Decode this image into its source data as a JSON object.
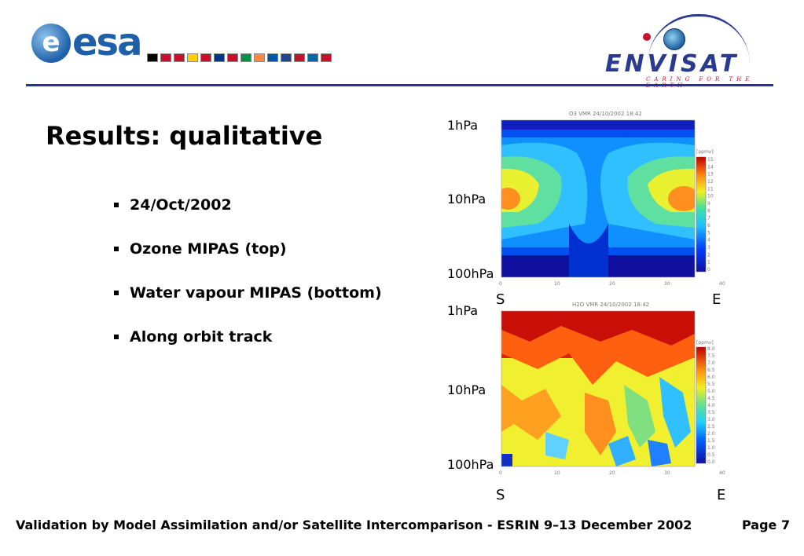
{
  "header": {
    "esa_logo_text": "esa",
    "esa_logo_initial": "e",
    "envisat_logo_text": "ENVISAT",
    "envisat_tagline": "CARING FOR THE EARTH",
    "flag_colors": [
      "#000000",
      "#c8102e",
      "#c8102e",
      "#ffd100",
      "#c8102e",
      "#003580",
      "#c8102e",
      "#009246",
      "#ff883e",
      "#0055a4",
      "#21468b",
      "#c8102e",
      "#006aa7",
      "#c8102e"
    ]
  },
  "slide": {
    "title": "Results: qualitative",
    "bullets": [
      "24/Oct/2002",
      "Ozone MIPAS (top)",
      "Water vapour MIPAS (bottom)",
      "Along orbit track"
    ]
  },
  "plots": {
    "top": {
      "caption": "O3 VMR 24/10/2002 18:42",
      "unit": "[ppmv]",
      "colorbar_ticks": [
        "15",
        "14",
        "13",
        "12",
        "11",
        "10",
        "9",
        "8",
        "7",
        "6",
        "5",
        "4",
        "3",
        "2",
        "1",
        "0"
      ],
      "x_ticks": [
        "0",
        "10",
        "20",
        "30",
        "40"
      ],
      "y_labels": [
        "1hPa",
        "10hPa",
        "100hPa"
      ],
      "start_label": "S",
      "end_label": "E"
    },
    "bottom": {
      "caption": "H2O VMR 24/10/2002 18:42",
      "unit": "[ppmv]",
      "colorbar_ticks": [
        "8.0",
        "7.5",
        "7.0",
        "6.5",
        "6.0",
        "5.5",
        "5.0",
        "4.5",
        "4.0",
        "3.5",
        "3.0",
        "2.5",
        "2.0",
        "1.5",
        "1.0",
        "0.5",
        "0.0"
      ],
      "x_ticks": [
        "0",
        "10",
        "20",
        "30",
        "40"
      ],
      "y_labels": [
        "1hPa",
        "10hPa",
        "100hPa"
      ],
      "start_label": "S",
      "end_label": "E"
    }
  },
  "footer": {
    "text": "Validation by Model Assimilation and/or Satellite Intercomparison - ESRIN 9–13 December 2002",
    "page_label": "Page 7"
  }
}
